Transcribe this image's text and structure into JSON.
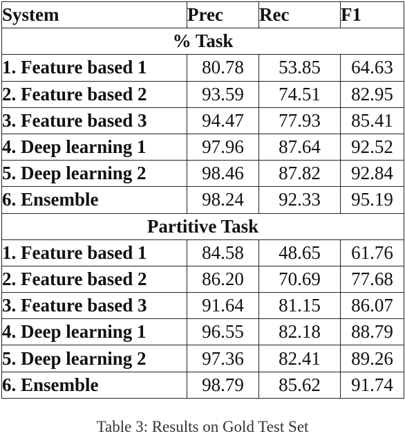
{
  "table": {
    "headers": [
      "System",
      "Prec",
      "Rec",
      "F1"
    ],
    "sections": [
      {
        "title": "% Task",
        "rows": [
          {
            "system": "1. Feature based 1",
            "prec": "80.78",
            "rec": "53.85",
            "f1": "64.63"
          },
          {
            "system": "2. Feature based 2",
            "prec": "93.59",
            "rec": "74.51",
            "f1": "82.95"
          },
          {
            "system": "3. Feature based 3",
            "prec": "94.47",
            "rec": "77.93",
            "f1": "85.41"
          },
          {
            "system": "4. Deep learning 1",
            "prec": "97.96",
            "rec": "87.64",
            "f1": "92.52"
          },
          {
            "system": "5. Deep learning 2",
            "prec": "98.46",
            "rec": "87.82",
            "f1": "92.84"
          },
          {
            "system": "6. Ensemble",
            "prec": "98.24",
            "rec": "92.33",
            "f1": "95.19"
          }
        ]
      },
      {
        "title": "Partitive Task",
        "rows": [
          {
            "system": "1. Feature based 1",
            "prec": "84.58",
            "rec": "48.65",
            "f1": "61.76"
          },
          {
            "system": "2. Feature based 2",
            "prec": "86.20",
            "rec": "70.69",
            "f1": "77.68"
          },
          {
            "system": "3. Feature based 3",
            "prec": "91.64",
            "rec": "81.15",
            "f1": "86.07"
          },
          {
            "system": "4. Deep learning 1",
            "prec": "96.55",
            "rec": "82.18",
            "f1": "88.79"
          },
          {
            "system": "5. Deep learning 2",
            "prec": "97.36",
            "rec": "82.41",
            "f1": "89.26"
          },
          {
            "system": "6. Ensemble",
            "prec": "98.79",
            "rec": "85.62",
            "f1": "91.74"
          }
        ]
      }
    ]
  },
  "caption": "Table 3: Results on Gold Test Set"
}
